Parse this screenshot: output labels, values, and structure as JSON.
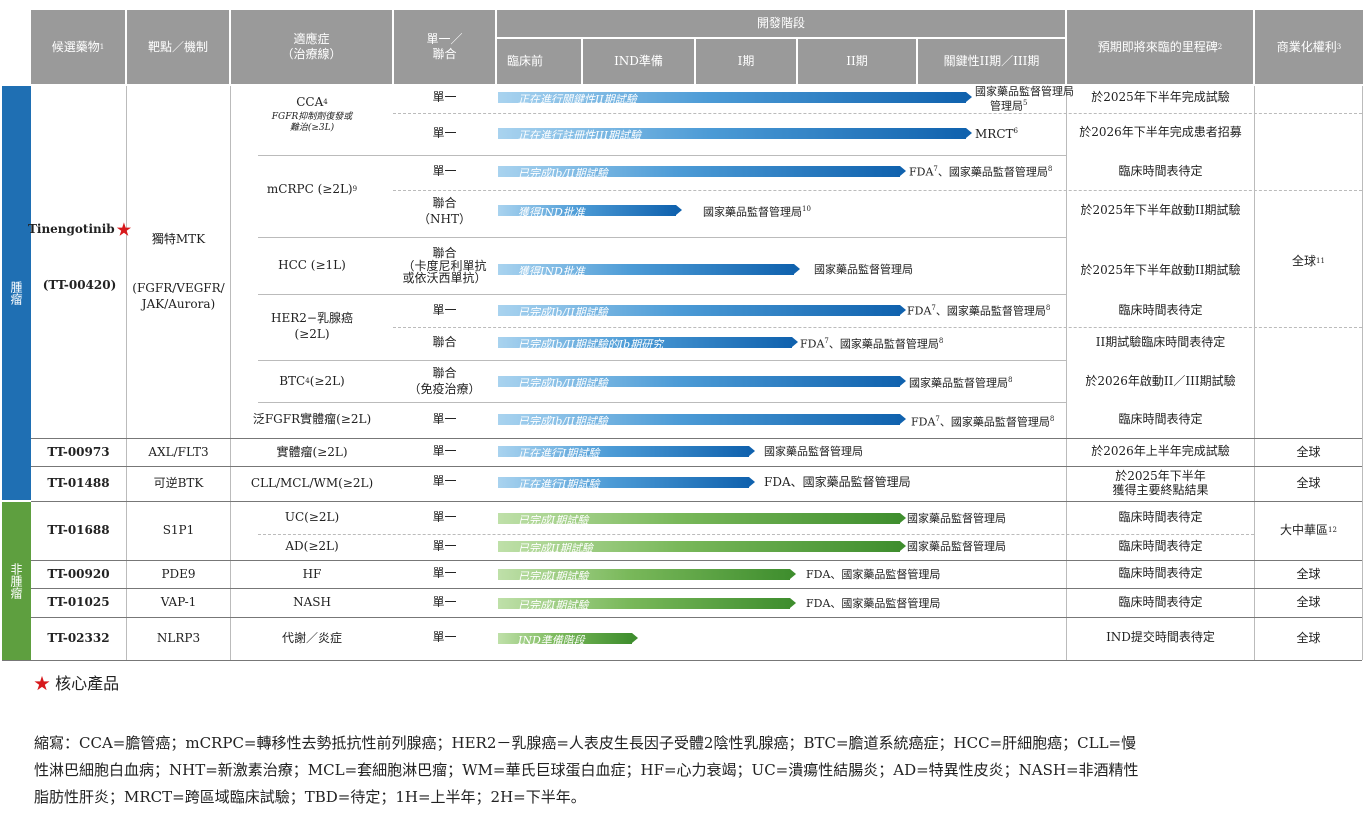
{
  "header": {
    "candidate": "候選藥物",
    "candidate_sup": "1",
    "target": "靶點／機制",
    "indication_1": "適應症",
    "indication_2": "（治療線）",
    "mono_combo_1": "單一／",
    "mono_combo_2": "聯合",
    "dev_stage": "開發階段",
    "stages": [
      "臨床前",
      "IND準備",
      "I期",
      "II期",
      "關鍵性II期／III期"
    ],
    "milestone": "預期即將來臨的里程碑",
    "milestone_sup": "2",
    "rights": "商業化權利",
    "rights_sup": "3"
  },
  "sections": {
    "oncology": "腫瘤",
    "non_oncology": "非腫瘤"
  },
  "drugs": {
    "tin_name": "Tinengotinib",
    "tin_code": "(TT-00420)",
    "tin_target_1": "獨特MTK",
    "tin_target_2": "(FGFR/VEGFR/",
    "tin_target_3": "JAK/Aurora)",
    "tin_rights": "全球",
    "tin_rights_sup": "11",
    "tt00973": "TT-00973",
    "tt00973_target": "AXL/FLT3",
    "tt00973_rights": "全球",
    "tt01488": "TT-01488",
    "tt01488_target": "可逆BTK",
    "tt01488_rights": "全球",
    "tt01688": "TT-01688",
    "tt01688_target": "S1P1",
    "tt01688_rights": "大中華區",
    "tt01688_rights_sup": "12",
    "tt00920": "TT-00920",
    "tt00920_target": "PDE9",
    "tt00920_rights": "全球",
    "tt01025": "TT-01025",
    "tt01025_target": "VAP-1",
    "tt01025_rights": "全球",
    "tt02332": "TT-02332",
    "tt02332_target": "NLRP3",
    "tt02332_rights": "全球"
  },
  "indications": {
    "cca": "CCA",
    "cca_sup": "4",
    "cca_note_1": "FGFR抑制劑復發或",
    "cca_note_2": "難治(≥3L)",
    "mcrpc": "mCRPC (≥2L)",
    "mcrpc_sup": "9",
    "hcc": "HCC (≥1L)",
    "her2_1": "HER2−乳腺癌",
    "her2_2": "(≥2L)",
    "btc": "BTC",
    "btc_sup": "4",
    "btc_rest": "(≥2L)",
    "pan_fgfr": "泛FGFR實體瘤(≥2L)",
    "solid": "實體瘤(≥2L)",
    "cll": "CLL/MCL/WM(≥2L)",
    "uc": "UC(≥2L)",
    "ad": "AD(≥2L)",
    "hf": "HF",
    "nash": "NASH",
    "metab": "代謝／炎症"
  },
  "modes": {
    "single": "單一",
    "combo": "聯合",
    "combo_nht": "（NHT）",
    "combo_hcc_1": "（卡度尼利單抗",
    "combo_hcc_2": "或依沃西單抗）",
    "combo_io": "（免疫治療）"
  },
  "bars": [
    {
      "text": "正在進行關鍵性II期試驗",
      "reg": "國家藥品監督管理局",
      "reg_sup": "5",
      "reg_line2": "管理局"
    },
    {
      "text": "正在進行註冊性III期試驗",
      "reg": "MRCT",
      "reg_sup": "6"
    },
    {
      "text": "已完成Ib/II期試驗",
      "reg": "FDA",
      "reg_sup": "7",
      "reg_rest": "、國家藥品監督管理局",
      "reg_sup2": "8"
    },
    {
      "text": "獲得IND批准",
      "reg": "國家藥品監督管理局",
      "reg_sup": "10"
    },
    {
      "text": "獲得IND批准",
      "reg": "國家藥品監督管理局"
    },
    {
      "text": "已完成Ib/II期試驗",
      "reg": "FDA",
      "reg_sup": "7",
      "reg_rest": "、國家藥品監督管理局",
      "reg_sup2": "8"
    },
    {
      "text": "已完成Ib/II期試驗的Ib期研究",
      "reg": "FDA",
      "reg_sup": "7",
      "reg_rest": "、國家藥品監督管理局",
      "reg_sup2": "8"
    },
    {
      "text": "已完成Ib/II期試驗",
      "reg": "國家藥品監督管理局",
      "reg_sup": "8"
    },
    {
      "text": "已完成Ib/II期試驗",
      "reg": "FDA",
      "reg_sup": "7",
      "reg_rest": "、國家藥品監督管理局",
      "reg_sup2": "8"
    },
    {
      "text": "正在進行I期試驗",
      "reg": "國家藥品監督管理局"
    },
    {
      "text": "正在進行I期試驗",
      "reg": "FDA、國家藥品監督管理局"
    },
    {
      "text": "已完成I期試驗",
      "reg": "國家藥品監督管理局"
    },
    {
      "text": "已完成II期試驗",
      "reg": "國家藥品監督管理局"
    },
    {
      "text": "已完成I期試驗",
      "reg": "FDA、國家藥品監督管理局"
    },
    {
      "text": "已完成I期試驗",
      "reg": "FDA、國家藥品監督管理局"
    },
    {
      "text": "IND準備階段"
    }
  ],
  "milestones": {
    "m1": "於2025年下半年完成試驗",
    "m2": "於2026年下半年完成患者招募",
    "m3": "臨床時間表待定",
    "m4": "於2025年下半年啟動II期試驗",
    "m5": "於2025年下半年啟動II期試驗",
    "m6": "臨床時間表待定",
    "m7": "II期試驗臨床時間表待定",
    "m8": "於2026年啟動II／III期試驗",
    "m9": "臨床時間表待定",
    "m10": "於2026年上半年完成試驗",
    "m11a": "於2025年下半年",
    "m11b": "獲得主要終點結果",
    "m12": "臨床時間表待定",
    "m13": "臨床時間表待定",
    "m14": "臨床時間表待定",
    "m15": "臨床時間表待定",
    "m16": "IND提交時間表待定"
  },
  "legend": {
    "star": "★",
    "core": "核心產品"
  },
  "abbrev_1": "縮寫：CCA=膽管癌；mCRPC=轉移性去勢抵抗性前列腺癌；HER2－乳腺癌=人表皮生長因子受體2陰性乳腺癌；BTC=膽道系統癌症；HCC=肝細胞癌；CLL=慢",
  "abbrev_2": "性淋巴細胞白血病；NHT=新激素治療；MCL=套細胞淋巴瘤；WM=華氏巨球蛋白血症；HF=心力衰竭；UC=潰瘍性結腸炎；AD=特異性皮炎；NASH=非酒精性",
  "abbrev_3": "脂肪性肝炎；MRCT=跨區域臨床試驗；TBD=待定；1H=上半年；2H=下半年。",
  "colors": {
    "header": "#9a9a9a",
    "oncology": "#1f6fb3",
    "non_oncology": "#5e9f3f",
    "star": "#d7191c"
  }
}
